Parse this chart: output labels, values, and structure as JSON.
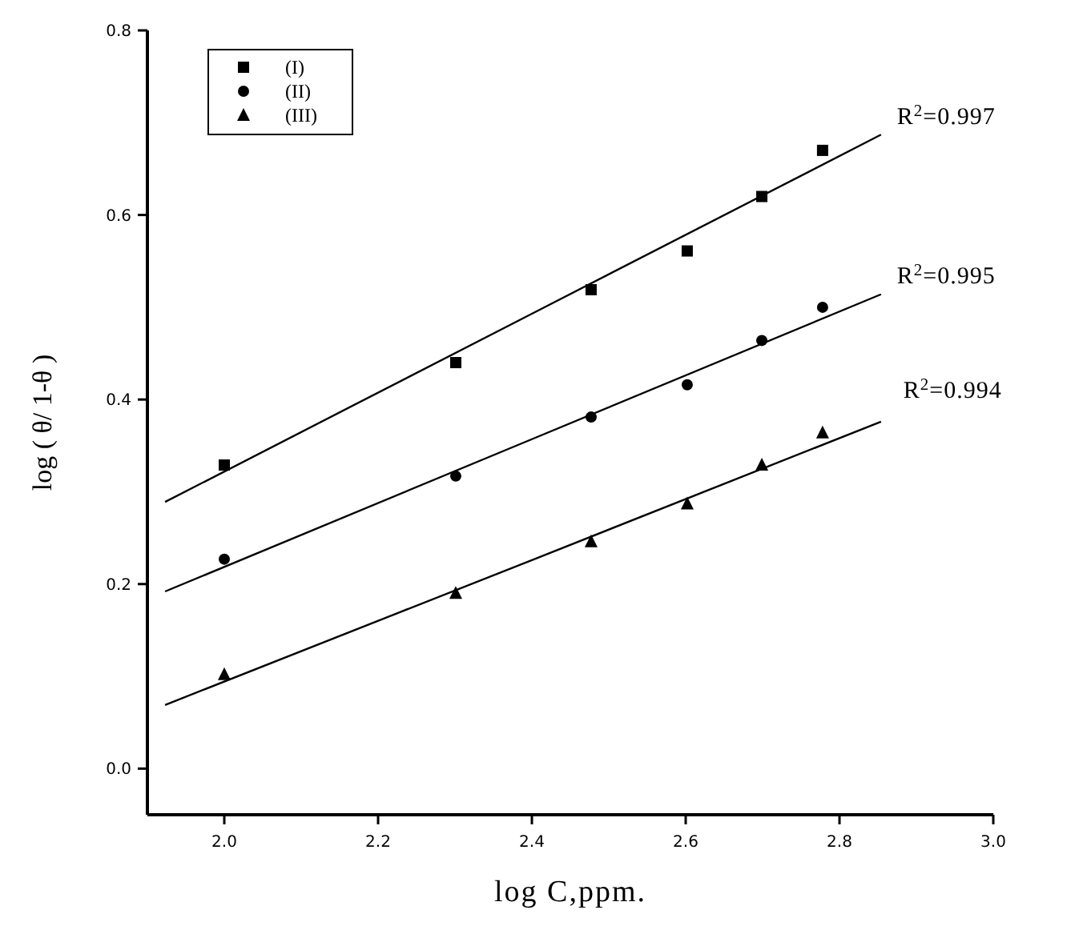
{
  "chart_data": {
    "type": "scatter",
    "xlabel": "log C,ppm.",
    "ylabel": "log ( θ/ 1-θ )",
    "xlim": [
      1.9,
      3.0
    ],
    "xticks": [
      {
        "value": 2,
        "label": "2.0"
      },
      2.2,
      2.4,
      2.6,
      2.8,
      {
        "value": 3,
        "label": "3.0"
      }
    ],
    "ylim": [
      -0.05,
      0.8
    ],
    "yticks": [
      {
        "value": 0,
        "label": "0.0"
      },
      0.2,
      0.4,
      0.6,
      0.8
    ],
    "grid": false,
    "legend": "top left",
    "x": [
      2.0,
      2.301,
      2.477,
      2.602,
      2.699,
      2.778
    ],
    "series": [
      {
        "name": "(I)",
        "color": "#000000",
        "marker": "square",
        "values": [
          0.329,
          0.44,
          0.519,
          0.561,
          0.62,
          0.67
        ]
      },
      {
        "name": "(II)",
        "color": "#000000",
        "marker": "circle",
        "values": [
          0.227,
          0.317,
          0.381,
          0.416,
          0.464,
          0.5
        ]
      },
      {
        "name": "(III)",
        "color": "#000000",
        "marker": "triangle",
        "values": [
          0.102,
          0.19,
          0.246,
          0.287,
          0.329,
          0.364
        ]
      },
      {
        "type": "line",
        "color": "#000000",
        "marker": "none",
        "line_style": "solid",
        "x": [
          1.923,
          2.4,
          2.854
        ],
        "values": [
          0.289,
          0.493,
          0.687
        ]
      },
      {
        "type": "line",
        "color": "#000000",
        "marker": "none",
        "line_style": "solid",
        "x": [
          1.923,
          2.4,
          2.854
        ],
        "values": [
          0.192,
          0.357,
          0.514
        ]
      },
      {
        "type": "line",
        "color": "#000000",
        "marker": "none",
        "line_style": "solid",
        "x": [
          1.923,
          2.4,
          2.854
        ],
        "values": [
          0.069,
          0.226,
          0.376
        ]
      }
    ],
    "annotations": [
      "R$^{2}$=0.997",
      "R$^{2}$=0.995",
      "R$^{2}$=0.994"
    ]
  }
}
